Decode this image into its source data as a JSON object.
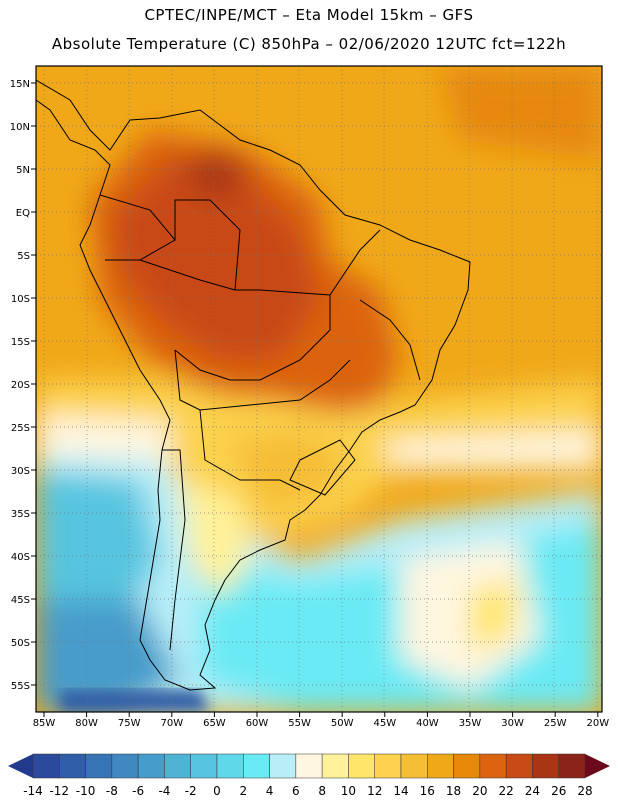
{
  "header": {
    "line1": "CPTEC/INPE/MCT –  Eta Model 15km – GFS",
    "line2": "Absolute Temperature (C) 850hPa – 02/06/2020 12UTC fct=122h"
  },
  "map": {
    "lat_labels": [
      "15N",
      "10N",
      "5N",
      "EQ",
      "5S",
      "10S",
      "15S",
      "20S",
      "25S",
      "30S",
      "35S",
      "40S",
      "45S",
      "50S",
      "55S"
    ],
    "lon_labels": [
      "85W",
      "80W",
      "75W",
      "70W",
      "65W",
      "60W",
      "55W",
      "50W",
      "45W",
      "40W",
      "35W",
      "30W",
      "25W",
      "20W"
    ],
    "lon_range": [
      -85,
      -20
    ],
    "lat_range": [
      -58,
      17
    ]
  },
  "colorbar": {
    "labels": [
      "-14",
      "-12",
      "-10",
      "-8",
      "-6",
      "-4",
      "-2",
      "0",
      "2",
      "4",
      "6",
      "8",
      "10",
      "12",
      "14",
      "16",
      "18",
      "20",
      "22",
      "24",
      "26",
      "28"
    ],
    "under_color": "#223a8c",
    "over_color": "#6a0a1a",
    "colors": [
      "#2c4a9c",
      "#305ea8",
      "#3774b4",
      "#3f88c0",
      "#469ccb",
      "#4fb3d6",
      "#57c5e0",
      "#5fd8ea",
      "#6aeaf4",
      "#b8eef8",
      "#fff6e0",
      "#fff29a",
      "#ffe66a",
      "#fcd24e",
      "#f6be34",
      "#f0a818",
      "#e68808",
      "#dc6410",
      "#c84a14",
      "#a83614",
      "#8a2418"
    ]
  }
}
